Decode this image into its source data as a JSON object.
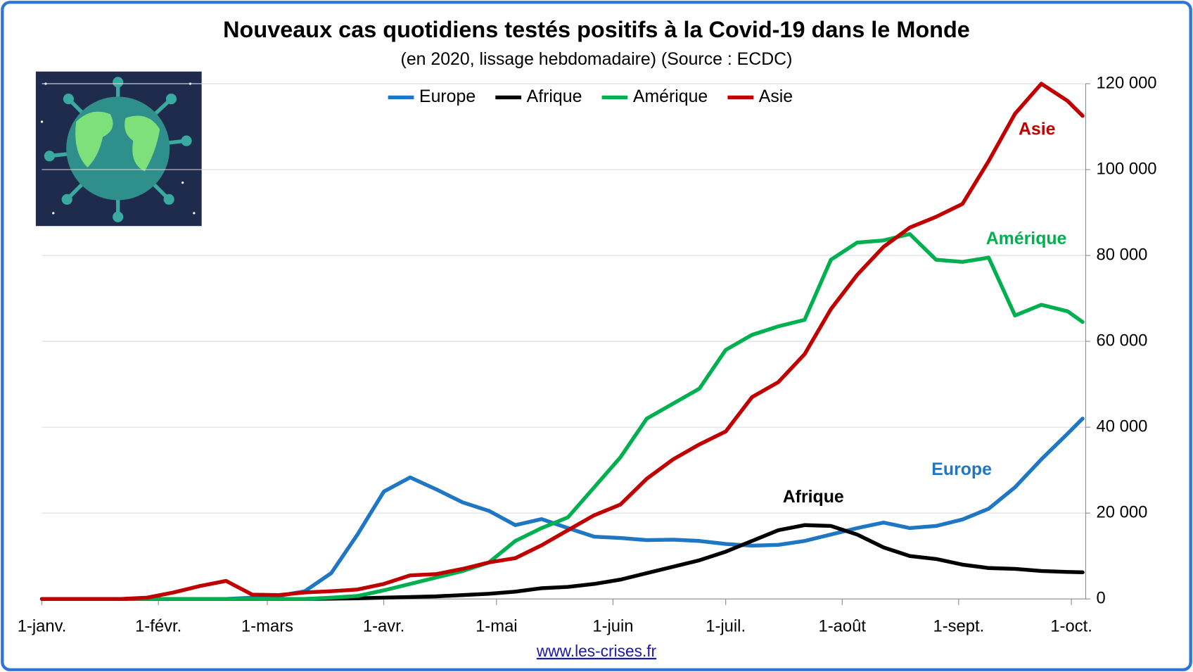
{
  "chart_data": {
    "type": "line",
    "title": "Nouveaux cas quotidiens testés positifs à la Covid-19 dans le Monde",
    "subtitle": "(en 2020, lissage hebdomadaire) (Source : ECDC)",
    "source": "www.les-crises.fr",
    "x": [
      0,
      7,
      14,
      21,
      28,
      35,
      42,
      49,
      56,
      63,
      70,
      77,
      84,
      91,
      98,
      105,
      112,
      119,
      126,
      133,
      140,
      147,
      154,
      161,
      168,
      175,
      182,
      189,
      196,
      203,
      210,
      217,
      224,
      231,
      238,
      245,
      252,
      259,
      266,
      273,
      277
    ],
    "xlim": [
      0,
      277
    ],
    "xticks": [
      {
        "value": 0,
        "label": "1-janv."
      },
      {
        "value": 31,
        "label": "1-févr."
      },
      {
        "value": 60,
        "label": "1-mars"
      },
      {
        "value": 91,
        "label": "1-avr."
      },
      {
        "value": 121,
        "label": "1-mai"
      },
      {
        "value": 152,
        "label": "1-juin"
      },
      {
        "value": 182,
        "label": "1-juil."
      },
      {
        "value": 213,
        "label": "1-août"
      },
      {
        "value": 244,
        "label": "1-sept."
      },
      {
        "value": 274,
        "label": "1-oct."
      }
    ],
    "ylim": [
      0,
      120000
    ],
    "yticks": [
      0,
      {
        "value": 20000,
        "label": "20 000"
      },
      {
        "value": 40000,
        "label": "40 000"
      },
      {
        "value": 60000,
        "label": "60 000"
      },
      {
        "value": 80000,
        "label": "80 000"
      },
      {
        "value": 100000,
        "label": "100 000"
      },
      {
        "value": 120000,
        "label": "120 000"
      }
    ],
    "grid": true,
    "legend": "top",
    "series": [
      {
        "name": "Europe",
        "color": "#1f77c4",
        "values": [
          0,
          0,
          0,
          0,
          0,
          0,
          0,
          0,
          300,
          700,
          1800,
          6000,
          15000,
          25000,
          28300,
          25500,
          22500,
          20500,
          17200,
          18600,
          16500,
          14500,
          14200,
          13700,
          13800,
          13500,
          12800,
          12400,
          12600,
          13500,
          15000,
          16500,
          17800,
          16500,
          17000,
          18500,
          21000,
          26000,
          32500,
          38500,
          42000
        ]
      },
      {
        "name": "Afrique",
        "color": "#000000",
        "values": [
          0,
          0,
          0,
          0,
          0,
          0,
          0,
          0,
          0,
          0,
          0,
          50,
          150,
          300,
          450,
          600,
          900,
          1200,
          1700,
          2500,
          2800,
          3500,
          4500,
          6000,
          7500,
          9000,
          11000,
          13500,
          16000,
          17200,
          17000,
          15000,
          12000,
          10000,
          9300,
          8000,
          7200,
          7000,
          6500,
          6300,
          6200
        ]
      },
      {
        "name": "Amérique",
        "color": "#00b050",
        "values": [
          0,
          0,
          0,
          0,
          0,
          0,
          0,
          0,
          0,
          0,
          0,
          300,
          700,
          2000,
          3500,
          5000,
          6500,
          8500,
          13500,
          16500,
          19000,
          26000,
          33000,
          42000,
          45500,
          49000,
          58000,
          61500,
          63500,
          65000,
          79000,
          83000,
          83500,
          85000,
          79000,
          78500,
          79500,
          66000,
          68500,
          67000,
          64500
        ]
      },
      {
        "name": "Asie",
        "color": "#c00000",
        "values": [
          0,
          0,
          0,
          0,
          300,
          1500,
          3000,
          4200,
          1000,
          900,
          1500,
          1800,
          2200,
          3500,
          5500,
          5800,
          7000,
          8500,
          9500,
          12500,
          16000,
          19500,
          22000,
          28000,
          32500,
          36000,
          39000,
          47000,
          50500,
          57000,
          67500,
          75500,
          82000,
          86500,
          89000,
          92000,
          102000,
          113000,
          120000,
          116000,
          112500
        ]
      }
    ]
  }
}
